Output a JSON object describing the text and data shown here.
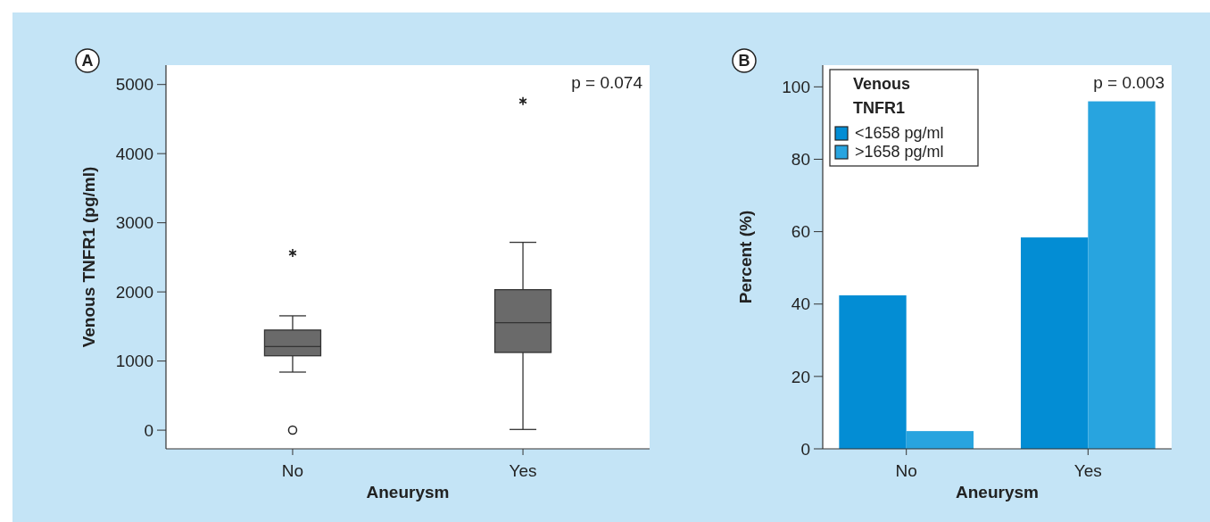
{
  "chart_data": [
    {
      "type": "box",
      "xlabel": "Aneurysm",
      "ylabel": "Venous TNFR1 (pg/ml)",
      "categories": [
        "No",
        "Yes"
      ],
      "color": "#6a6a6a",
      "boxes": [
        {
          "low": 840,
          "q1": 1076,
          "median": 1209,
          "q3": 1448,
          "high": 1654,
          "outliers": [
            2563,
            0
          ]
        },
        {
          "low": 10,
          "q1": 1124,
          "median": 1554,
          "q3": 2032,
          "high": 2717,
          "outliers": [
            4760
          ]
        }
      ],
      "ylim": [
        -270,
        5280
      ],
      "yticks": [
        0,
        1000,
        2000,
        3000,
        4000,
        5000
      ],
      "grid": false,
      "annotations": [
        "A",
        "p = 0.074"
      ]
    },
    {
      "type": "bar",
      "xlabel": "Aneurysm",
      "ylabel": "Percent (%)",
      "categories": [
        "No",
        "Yes"
      ],
      "legend_title": "Venous TNFR1",
      "legend": "top left",
      "series": [
        {
          "name": "<1658 pg/ml",
          "color": "#038dd4",
          "values": [
            42.4,
            58.4
          ]
        },
        {
          "name": ">1658 pg/ml",
          "color": "#28a4df",
          "values": [
            4.9,
            96.0
          ]
        }
      ],
      "ylim": [
        0,
        106
      ],
      "yticks": [
        0,
        20,
        40,
        60,
        80,
        100
      ],
      "grid": false,
      "annotations": [
        "B",
        "p = 0.003"
      ]
    }
  ]
}
